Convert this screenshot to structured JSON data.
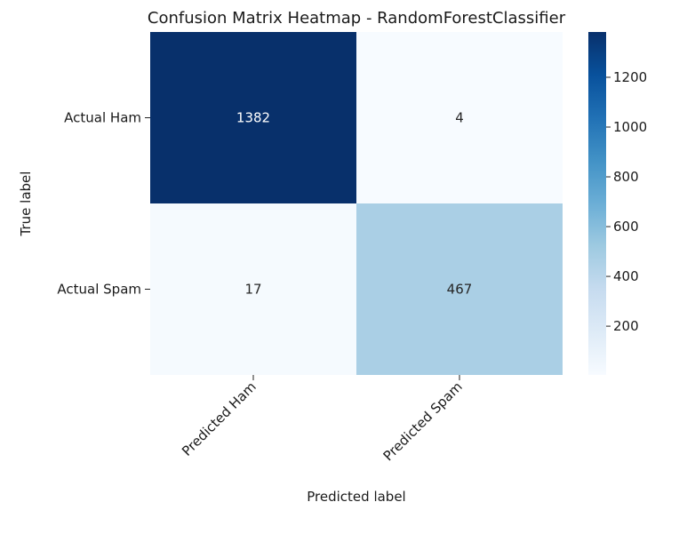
{
  "chart_data": {
    "type": "heatmap",
    "title": "Confusion Matrix Heatmap - RandomForestClassifier",
    "xlabel": "Predicted label",
    "ylabel": "True label",
    "x_categories": [
      "Predicted Ham",
      "Predicted Spam"
    ],
    "y_categories": [
      "Actual Ham",
      "Actual Spam"
    ],
    "values": [
      [
        1382,
        4
      ],
      [
        17,
        467
      ]
    ],
    "colormap": "Blues",
    "value_range": [
      4,
      1382
    ],
    "colorbar_ticks": [
      200,
      400,
      600,
      800,
      1000,
      1200
    ],
    "colors": {
      "low": "#f7fbff",
      "high": "#08306b"
    }
  }
}
